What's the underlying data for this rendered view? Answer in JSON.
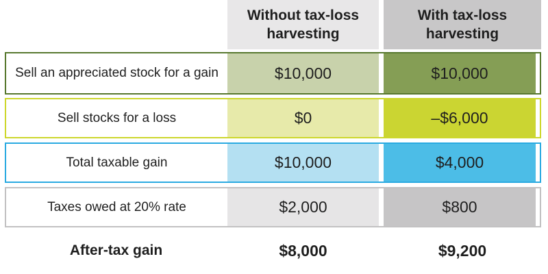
{
  "chart_data": {
    "type": "table",
    "title": "",
    "columns": [
      "",
      "Without tax-loss harvesting",
      "With tax-loss harvesting"
    ],
    "rows": [
      {
        "label": "Sell an appreciated stock for a gain",
        "without": "$10,000",
        "with": "$10,000"
      },
      {
        "label": "Sell stocks for a loss",
        "without": "$0",
        "with": "–$6,000"
      },
      {
        "label": "Total taxable gain",
        "without": "$10,000",
        "with": "$4,000"
      },
      {
        "label": "Taxes owed at 20% rate",
        "without": "$2,000",
        "with": "$800"
      }
    ],
    "footer": {
      "label": "After-tax gain",
      "without": "$8,000",
      "with": "$9,200"
    }
  },
  "table": {
    "columns": [
      {
        "label": "Without tax-loss harvesting",
        "header_bg": "#e8e7e8"
      },
      {
        "label": "With tax-loss harvesting",
        "header_bg": "#c8c7c8"
      }
    ],
    "rows": [
      {
        "label": "Sell an appreciated stock for a gain",
        "without": "$10,000",
        "with": "$10,000",
        "colors": {
          "border": "#57782e",
          "light": "#c8d2ab",
          "dark": "#859e55"
        }
      },
      {
        "label": "Sell stocks for a loss",
        "without": "$0",
        "with": "–$6,000",
        "colors": {
          "border": "#cdd72b",
          "light": "#e7eaaa",
          "dark": "#cbd532"
        }
      },
      {
        "label": "Total taxable gain",
        "without": "$10,000",
        "with": "$4,000",
        "colors": {
          "border": "#2aaae1",
          "light": "#b4e0f2",
          "dark": "#4cbde7"
        }
      },
      {
        "label": "Taxes owed at 20% rate",
        "without": "$2,000",
        "with": "$800",
        "colors": {
          "border": "#c2c1c2",
          "light": "#e6e5e6",
          "dark": "#c6c5c6"
        }
      }
    ],
    "footer": {
      "label": "After-tax gain",
      "without": "$8,000",
      "with": "$9,200"
    },
    "text_color": "#1e1e1e",
    "background": "#ffffff"
  }
}
